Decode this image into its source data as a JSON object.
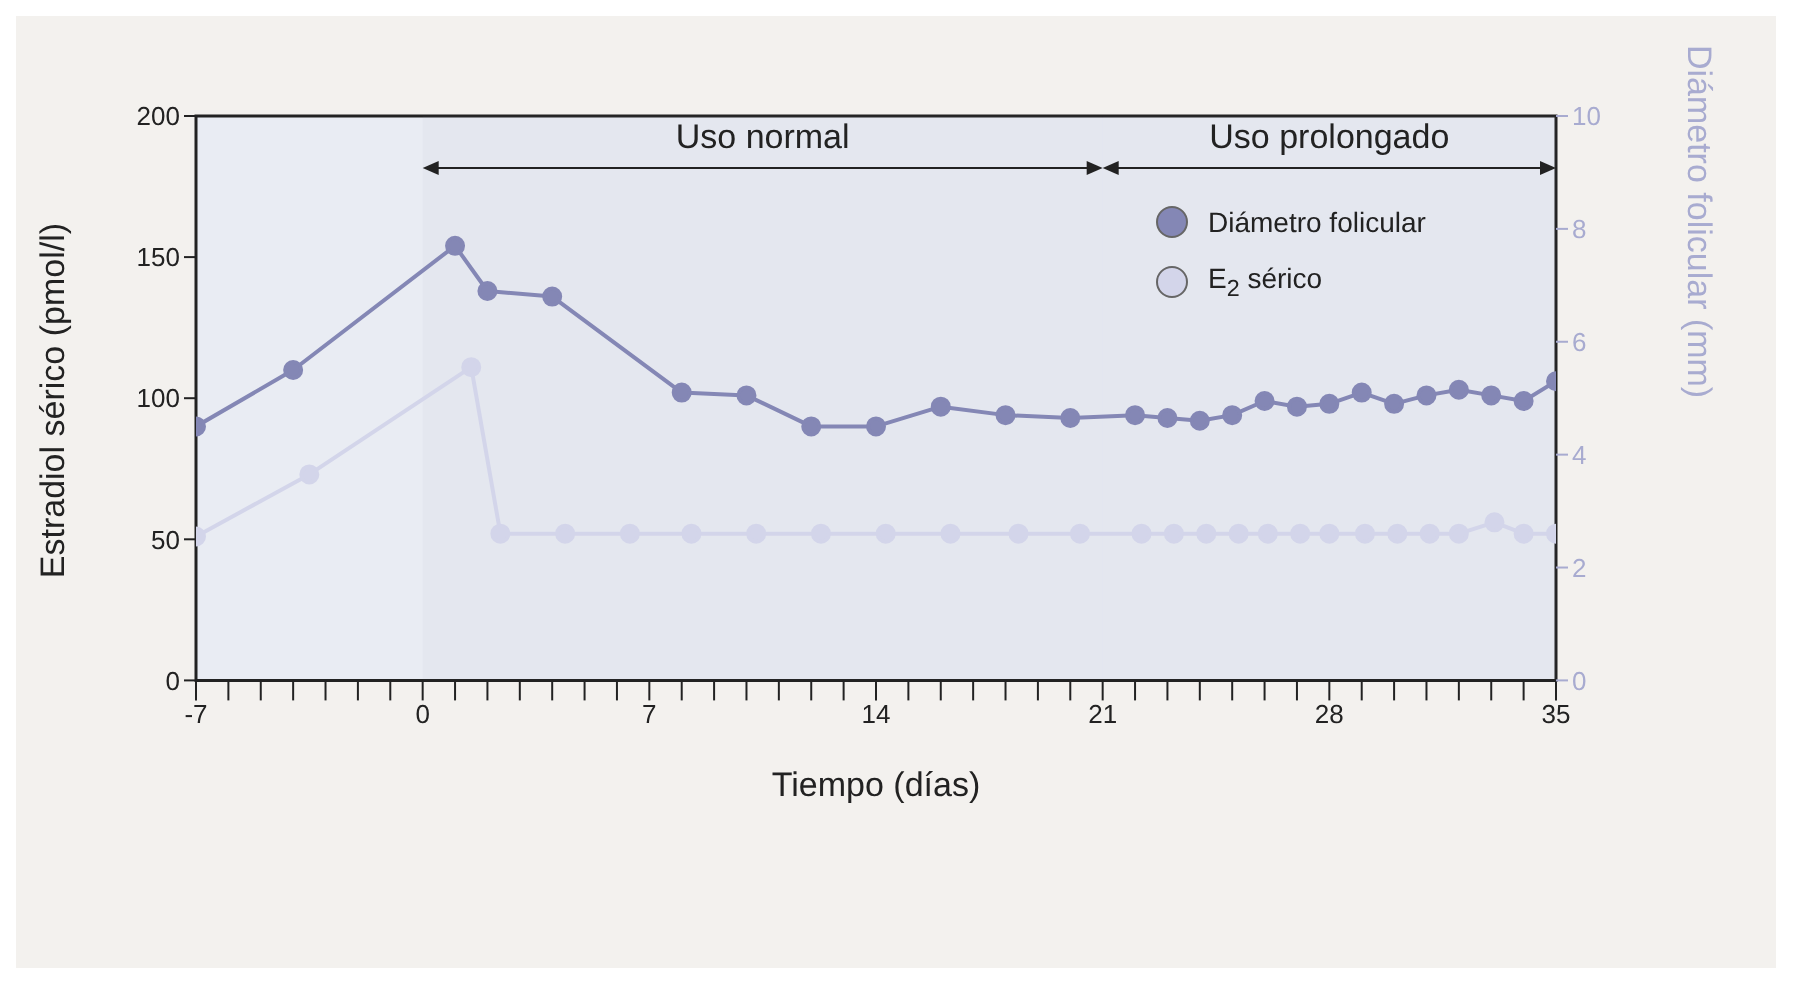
{
  "chart_data": {
    "type": "line",
    "xlabel": "Tiempo (días)",
    "ylabel": "Estradiol sérico (pmol/l)",
    "y2label": "Diámetro folicular (mm)",
    "xlim": [
      -7,
      35
    ],
    "ylim": [
      0,
      200
    ],
    "yticks": [
      0,
      50,
      100,
      150,
      200
    ],
    "y2lim": [
      0,
      10
    ],
    "y2ticks": [
      0,
      2,
      4,
      6,
      8,
      10
    ],
    "xticks": [
      -7,
      {
        "value": -6,
        "label": null
      },
      {
        "value": -5,
        "label": null
      },
      {
        "value": -4,
        "label": null
      },
      {
        "value": -3,
        "label": null
      },
      {
        "value": -2,
        "label": null
      },
      {
        "value": -1,
        "label": null
      },
      0,
      {
        "value": 1,
        "label": null
      },
      {
        "value": 2,
        "label": null
      },
      {
        "value": 3,
        "label": null
      },
      {
        "value": 4,
        "label": null
      },
      {
        "value": 5,
        "label": null
      },
      {
        "value": 6,
        "label": null
      },
      7,
      {
        "value": 8,
        "label": null
      },
      {
        "value": 9,
        "label": null
      },
      {
        "value": 10,
        "label": null
      },
      {
        "value": 11,
        "label": null
      },
      {
        "value": 12,
        "label": null
      },
      {
        "value": 13,
        "label": null
      },
      14,
      {
        "value": 15,
        "label": null
      },
      {
        "value": 16,
        "label": null
      },
      {
        "value": 17,
        "label": null
      },
      {
        "value": 18,
        "label": null
      },
      {
        "value": 19,
        "label": null
      },
      {
        "value": 20,
        "label": null
      },
      21,
      {
        "value": 22,
        "label": null
      },
      {
        "value": 23,
        "label": null
      },
      {
        "value": 24,
        "label": null
      },
      {
        "value": 25,
        "label": null
      },
      {
        "value": 26,
        "label": null
      },
      {
        "value": 27,
        "label": null
      },
      28,
      {
        "value": 29,
        "label": null
      },
      {
        "value": 30,
        "label": null
      },
      {
        "value": 31,
        "label": null
      },
      {
        "value": 32,
        "label": null
      },
      {
        "value": 33,
        "label": null
      },
      {
        "value": 34,
        "label": null
      },
      35
    ],
    "bands": [
      {
        "axis": "x",
        "from": 0,
        "to": 21,
        "label": "Uso normal"
      },
      {
        "axis": "x",
        "from": 21,
        "to": 35,
        "label": "Uso prolongado"
      }
    ],
    "legend": "top right",
    "marker": "circle",
    "line_style": "solid",
    "series": [
      {
        "name": "Diámetro folicular",
        "color": "#8487b5",
        "axis": "y2",
        "x": [
          -7,
          -4,
          1,
          2,
          4,
          8,
          10,
          12,
          14,
          16,
          18,
          20,
          22,
          23,
          24,
          25,
          26,
          27,
          28,
          29,
          30,
          31,
          32,
          33,
          34,
          35
        ],
        "values": [
          4.5,
          5.5,
          7.7,
          6.9,
          6.8,
          5.1,
          5.05,
          4.5,
          4.5,
          4.85,
          4.7,
          4.65,
          4.7,
          4.65,
          4.6,
          4.7,
          4.95,
          4.85,
          4.9,
          5.1,
          4.9,
          5.05,
          5.15,
          5.05,
          4.95,
          5.3
        ]
      },
      {
        "name": "E$_{2}$ sérico",
        "color": "#d3d5ea",
        "x": [
          -7,
          -3.5,
          1.5,
          2.4,
          4.4,
          6.4,
          8.3,
          10.3,
          12.3,
          14.3,
          16.3,
          18.4,
          20.3,
          22.2,
          23.2,
          24.2,
          25.2,
          26.1,
          27.1,
          28,
          29.1,
          30.1,
          31.1,
          32,
          33.1,
          34,
          35
        ],
        "values": [
          51,
          73,
          111,
          52,
          52,
          52,
          52,
          52,
          52,
          52,
          52,
          52,
          52,
          52,
          52,
          52,
          52,
          52,
          52,
          52,
          52,
          52,
          52,
          52,
          56,
          52,
          52
        ]
      }
    ]
  }
}
